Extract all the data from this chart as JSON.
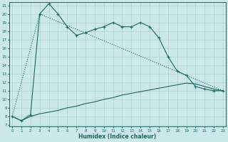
{
  "xlabel": "Humidex (Indice chaleur)",
  "background_color": "#cde8e8",
  "grid_color": "#b0d0d0",
  "line_color": "#1a6860",
  "xmin": -0.3,
  "xmax": 23.3,
  "ymin": 6.8,
  "ymax": 21.4,
  "line1_x": [
    0,
    1,
    2,
    3,
    4,
    5,
    6,
    7,
    8,
    9,
    10,
    11,
    12,
    13,
    14,
    15,
    16,
    17,
    18,
    19,
    20,
    21,
    22,
    23
  ],
  "line1_y": [
    8.0,
    7.5,
    8.2,
    20.0,
    21.2,
    20.0,
    18.5,
    17.5,
    17.8,
    18.2,
    18.5,
    19.0,
    18.5,
    18.5,
    19.0,
    18.5,
    17.2,
    15.0,
    13.3,
    12.8,
    11.5,
    11.2,
    11.0,
    11.0
  ],
  "line2_x": [
    0,
    3,
    23
  ],
  "line2_y": [
    8.0,
    20.0,
    11.0
  ],
  "line3_x": [
    0,
    1,
    2,
    3,
    4,
    5,
    6,
    7,
    8,
    9,
    10,
    11,
    12,
    13,
    14,
    15,
    16,
    17,
    18,
    19,
    20,
    21,
    22,
    23
  ],
  "line3_y": [
    8.0,
    7.5,
    8.0,
    8.3,
    8.5,
    8.7,
    9.0,
    9.2,
    9.5,
    9.7,
    10.0,
    10.2,
    10.5,
    10.7,
    10.9,
    11.1,
    11.3,
    11.5,
    11.7,
    11.9,
    11.8,
    11.5,
    11.2,
    11.0
  ],
  "yticks": [
    7,
    8,
    9,
    10,
    11,
    12,
    13,
    14,
    15,
    16,
    17,
    18,
    19,
    20,
    21
  ],
  "xticks": [
    0,
    1,
    2,
    3,
    4,
    5,
    6,
    7,
    8,
    9,
    10,
    11,
    12,
    13,
    14,
    15,
    16,
    17,
    18,
    19,
    20,
    21,
    22,
    23
  ]
}
